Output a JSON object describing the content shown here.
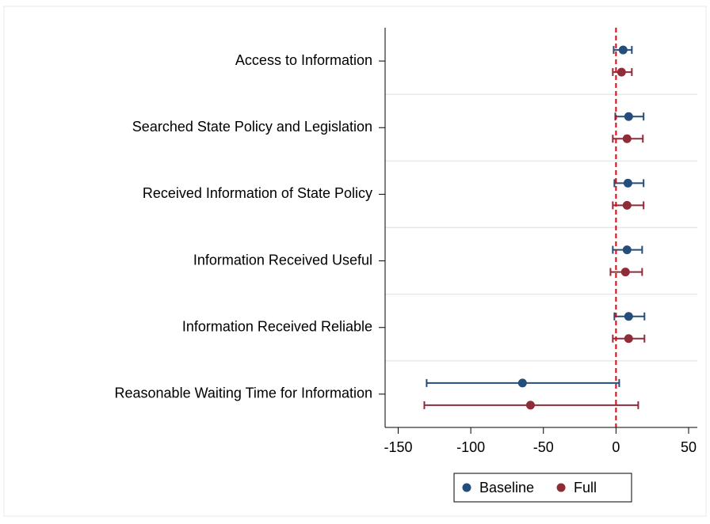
{
  "chart_data": {
    "type": "coefplot",
    "categories": [
      "Access to Information",
      "Searched State Policy and Legislation",
      "Received Information of State Policy",
      "Information Received Useful",
      "Information Received Reliable",
      "Reasonable Waiting Time for Information"
    ],
    "series": [
      {
        "name": "Baseline",
        "color": "#234e7b",
        "values": [
          4.9,
          8.7,
          8.2,
          7.6,
          8.7,
          -64.4
        ],
        "lower": [
          -1.6,
          -0.5,
          -1.1,
          -2.2,
          -1.1,
          -130.4
        ],
        "upper": [
          10.9,
          19,
          19,
          18,
          19.6,
          2.2
        ]
      },
      {
        "name": "Full",
        "color": "#8e2c38",
        "values": [
          3.8,
          7.6,
          7.6,
          6.5,
          8.7,
          -58.9
        ],
        "lower": [
          -2.2,
          -2.2,
          -2.2,
          -3.8,
          -2.2,
          -132
        ],
        "upper": [
          10.9,
          18.5,
          19,
          18,
          19.6,
          15.3
        ]
      }
    ],
    "xlim": [
      -159,
      56
    ],
    "xticks": [
      -150,
      -100,
      -50,
      0,
      50
    ],
    "reference_line": 0,
    "reference_color": "#e8000b",
    "grid": true,
    "legend": "bottom"
  }
}
